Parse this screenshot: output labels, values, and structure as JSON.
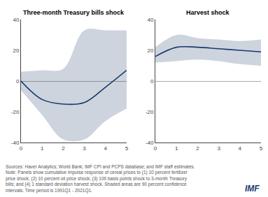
{
  "chart_data": [
    {
      "type": "line",
      "title": "Three-month Treasury bills shock",
      "x": [
        0,
        1,
        2,
        3,
        4,
        5
      ],
      "values": [
        0,
        -12,
        -15,
        -14,
        -4,
        7
      ],
      "upper": [
        6,
        7,
        8,
        33,
        33,
        33
      ],
      "lower": [
        -6,
        -22,
        -38,
        -38,
        -26,
        -18
      ],
      "color": "#1a3a6b",
      "xlim": [
        0,
        5
      ],
      "xticks": [
        0,
        1,
        2,
        3,
        4,
        5
      ],
      "ylim": [
        -40,
        40
      ],
      "yticks": [
        -40,
        -20,
        0,
        20,
        40
      ],
      "grid": false
    },
    {
      "type": "line",
      "title": "Harvest shock",
      "x": [
        0,
        1,
        2,
        3,
        4,
        5
      ],
      "values": [
        16,
        22,
        22,
        21,
        20,
        19
      ],
      "upper": [
        22,
        30,
        28,
        27,
        26,
        27
      ],
      "lower": [
        12,
        13,
        14,
        13,
        11,
        10
      ],
      "color": "#1a3a6b",
      "xlim": [
        0,
        5
      ],
      "xticks": [
        0,
        1,
        2,
        3,
        4,
        5
      ],
      "ylim": [
        -40,
        40
      ],
      "yticks": [
        -40,
        -20,
        0,
        20,
        40
      ],
      "grid": false
    }
  ],
  "annotations": [
    {
      "text": "Sources: Haver Analytics; World Bank; IMF CPI and PCPS database; and IMF staff estimates.\nNote: Panels show cumulative impulse response of cereal prices to (1) 10 percent fertilizer\nprice shock; (2) 10 percent oil price shock; (3) 100 basis points shock to 3-month Treasury\nbills; and (4) 1 standard deviation harvest shock. Shaded areas are 90 percent confidence\nintervals. Time period is 1991Q1 - 2021Q1."
    },
    {
      "text": "IMF",
      "color": "#1a3a6b"
    }
  ]
}
